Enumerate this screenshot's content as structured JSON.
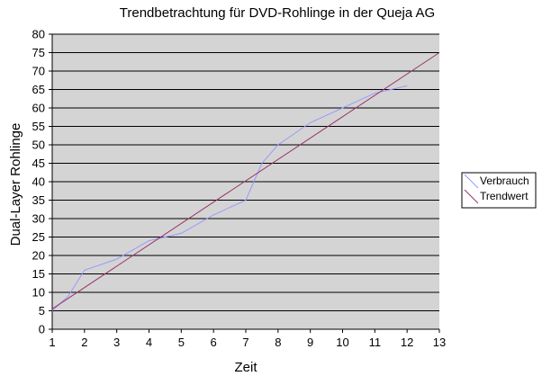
{
  "chart_data": {
    "type": "line",
    "title": "Trendbetrachtung für DVD-Rohlinge in der Queja AG",
    "xlabel": "Zeit",
    "ylabel": "Dual-Layer Rohlinge",
    "xlim": [
      1,
      13
    ],
    "ylim": [
      0,
      80
    ],
    "x_ticks": [
      1,
      2,
      3,
      4,
      5,
      6,
      7,
      8,
      9,
      10,
      11,
      12,
      13
    ],
    "y_ticks": [
      0,
      5,
      10,
      15,
      20,
      25,
      30,
      35,
      40,
      45,
      50,
      55,
      60,
      65,
      70,
      75,
      80
    ],
    "grid": "horizontal",
    "plot_background": "#d4d4d4",
    "legend_position": "right",
    "series": [
      {
        "name": "Verbrauch",
        "color": "#9999ff",
        "x": [
          1,
          1.5,
          2,
          3,
          4,
          4.5,
          5,
          6,
          7,
          7.5,
          8,
          9,
          10,
          11,
          12
        ],
        "y": [
          5,
          9,
          16,
          19,
          24,
          25,
          26,
          31,
          35,
          45,
          50,
          56,
          60,
          64,
          66
        ]
      },
      {
        "name": "Trendwert",
        "color": "#993366",
        "x": [
          1,
          13
        ],
        "y": [
          5.5,
          75
        ]
      }
    ]
  }
}
